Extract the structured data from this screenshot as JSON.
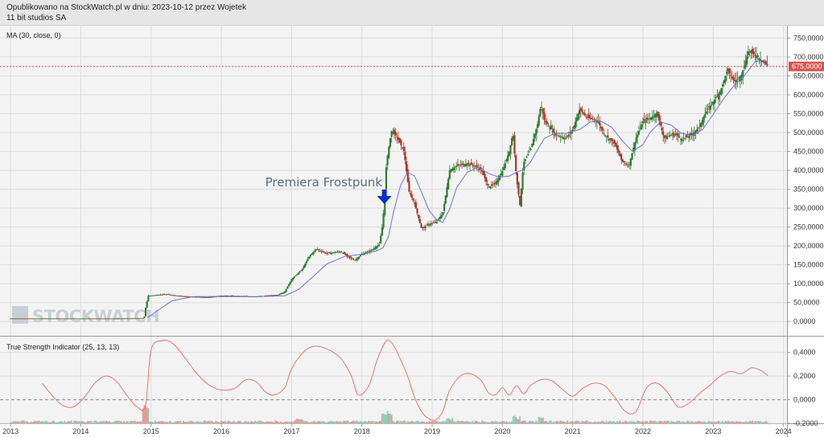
{
  "header": {
    "line1": "Opublikowano na StockWatch.pl w dniu: 2023-10-12 przez Wojetek",
    "line2": "11 bit studios SA"
  },
  "watermark": "STOCKWATCH",
  "chart_data": [
    {
      "type": "candlestick",
      "title": "MA (30, close, 0)",
      "ylim": [
        -25000,
        770000
      ],
      "ytick_labels": [
        "750,0000",
        "700,0000",
        "650,0000",
        "600,0000",
        "550,0000",
        "500,0000",
        "450,0000",
        "400,0000",
        "350,0000",
        "300,0000",
        "250,0000",
        "200,0000",
        "150,0000",
        "100,0000",
        "50,0000",
        "0,0000"
      ],
      "yticks": [
        750000,
        700000,
        650000,
        600000,
        550000,
        500000,
        450000,
        400000,
        350000,
        300000,
        250000,
        200000,
        150000,
        100000,
        50000,
        0
      ],
      "last_price_label": "675,0000",
      "last_price": 675000,
      "annotation": "Premiera Frostpunk",
      "annotation_x": 2018.32,
      "price_points": [
        [
          2013.0,
          8000
        ],
        [
          2013.5,
          8000
        ],
        [
          2014.0,
          8000
        ],
        [
          2014.5,
          8000
        ],
        [
          2014.9,
          8500
        ],
        [
          2014.93,
          45000
        ],
        [
          2014.96,
          68000
        ],
        [
          2015.2,
          72000
        ],
        [
          2015.5,
          66000
        ],
        [
          2015.8,
          64000
        ],
        [
          2016.0,
          68000
        ],
        [
          2016.2,
          67000
        ],
        [
          2016.5,
          66000
        ],
        [
          2016.8,
          70000
        ],
        [
          2016.9,
          78000
        ],
        [
          2017.0,
          112000
        ],
        [
          2017.15,
          138000
        ],
        [
          2017.25,
          172000
        ],
        [
          2017.35,
          192000
        ],
        [
          2017.5,
          180000
        ],
        [
          2017.7,
          185000
        ],
        [
          2017.8,
          172000
        ],
        [
          2017.9,
          162000
        ],
        [
          2018.0,
          178000
        ],
        [
          2018.15,
          190000
        ],
        [
          2018.25,
          205000
        ],
        [
          2018.3,
          262000
        ],
        [
          2018.35,
          420000
        ],
        [
          2018.42,
          505000
        ],
        [
          2018.5,
          488000
        ],
        [
          2018.6,
          450000
        ],
        [
          2018.67,
          345000
        ],
        [
          2018.75,
          312000
        ],
        [
          2018.85,
          245000
        ],
        [
          2018.95,
          258000
        ],
        [
          2019.05,
          262000
        ],
        [
          2019.15,
          285000
        ],
        [
          2019.25,
          400000
        ],
        [
          2019.35,
          412000
        ],
        [
          2019.5,
          418000
        ],
        [
          2019.6,
          412000
        ],
        [
          2019.7,
          402000
        ],
        [
          2019.8,
          355000
        ],
        [
          2019.9,
          365000
        ],
        [
          2020.0,
          398000
        ],
        [
          2020.1,
          452000
        ],
        [
          2020.15,
          500000
        ],
        [
          2020.2,
          380000
        ],
        [
          2020.25,
          308000
        ],
        [
          2020.3,
          420000
        ],
        [
          2020.4,
          455000
        ],
        [
          2020.5,
          522000
        ],
        [
          2020.55,
          575000
        ],
        [
          2020.6,
          530000
        ],
        [
          2020.75,
          495000
        ],
        [
          2020.9,
          485000
        ],
        [
          2021.0,
          508000
        ],
        [
          2021.1,
          562000
        ],
        [
          2021.2,
          540000
        ],
        [
          2021.35,
          532000
        ],
        [
          2021.45,
          495000
        ],
        [
          2021.6,
          470000
        ],
        [
          2021.7,
          425000
        ],
        [
          2021.8,
          412000
        ],
        [
          2021.9,
          485000
        ],
        [
          2022.0,
          530000
        ],
        [
          2022.1,
          538000
        ],
        [
          2022.2,
          552000
        ],
        [
          2022.3,
          485000
        ],
        [
          2022.45,
          498000
        ],
        [
          2022.55,
          482000
        ],
        [
          2022.7,
          495000
        ],
        [
          2022.8,
          515000
        ],
        [
          2022.9,
          555000
        ],
        [
          2023.0,
          582000
        ],
        [
          2023.1,
          608000
        ],
        [
          2023.2,
          665000
        ],
        [
          2023.3,
          635000
        ],
        [
          2023.4,
          650000
        ],
        [
          2023.5,
          715000
        ],
        [
          2023.6,
          705000
        ],
        [
          2023.7,
          690000
        ],
        [
          2023.78,
          675000
        ]
      ],
      "ma_points": [
        [
          2014.95,
          10000
        ],
        [
          2015.1,
          30000
        ],
        [
          2015.3,
          55000
        ],
        [
          2015.6,
          66000
        ],
        [
          2016.0,
          66000
        ],
        [
          2016.5,
          66000
        ],
        [
          2016.9,
          68000
        ],
        [
          2017.1,
          85000
        ],
        [
          2017.3,
          118000
        ],
        [
          2017.5,
          152000
        ],
        [
          2017.75,
          172000
        ],
        [
          2018.0,
          178000
        ],
        [
          2018.2,
          186000
        ],
        [
          2018.3,
          195000
        ],
        [
          2018.38,
          225000
        ],
        [
          2018.45,
          290000
        ],
        [
          2018.55,
          360000
        ],
        [
          2018.65,
          395000
        ],
        [
          2018.75,
          385000
        ],
        [
          2018.85,
          342000
        ],
        [
          2018.95,
          296000
        ],
        [
          2019.05,
          272000
        ],
        [
          2019.15,
          262000
        ],
        [
          2019.25,
          298000
        ],
        [
          2019.35,
          355000
        ],
        [
          2019.5,
          395000
        ],
        [
          2019.65,
          408000
        ],
        [
          2019.8,
          392000
        ],
        [
          2019.95,
          382000
        ],
        [
          2020.1,
          385000
        ],
        [
          2020.2,
          395000
        ],
        [
          2020.3,
          402000
        ],
        [
          2020.4,
          422000
        ],
        [
          2020.5,
          455000
        ],
        [
          2020.6,
          485000
        ],
        [
          2020.75,
          498000
        ],
        [
          2020.9,
          498000
        ],
        [
          2021.1,
          508000
        ],
        [
          2021.25,
          528000
        ],
        [
          2021.4,
          530000
        ],
        [
          2021.55,
          515000
        ],
        [
          2021.7,
          480000
        ],
        [
          2021.85,
          450000
        ],
        [
          2022.0,
          468000
        ],
        [
          2022.1,
          500000
        ],
        [
          2022.25,
          528000
        ],
        [
          2022.4,
          520000
        ],
        [
          2022.55,
          498000
        ],
        [
          2022.7,
          492000
        ],
        [
          2022.85,
          508000
        ],
        [
          2023.0,
          548000
        ],
        [
          2023.15,
          590000
        ],
        [
          2023.3,
          625000
        ],
        [
          2023.45,
          652000
        ],
        [
          2023.6,
          688000
        ],
        [
          2023.75,
          692000
        ]
      ]
    },
    {
      "type": "line",
      "title": "True Strength Indicator (25, 13, 13)",
      "ylim": [
        -0.2,
        0.5
      ],
      "ytick_labels": [
        "0,4000",
        "0,2000",
        "0,0000",
        "-0,2000"
      ],
      "yticks": [
        0.4,
        0.2,
        0.0,
        -0.2
      ],
      "points": [
        [
          2013.45,
          0.14
        ],
        [
          2013.6,
          0.03
        ],
        [
          2013.75,
          -0.05
        ],
        [
          2013.9,
          -0.06
        ],
        [
          2014.05,
          0.02
        ],
        [
          2014.2,
          0.14
        ],
        [
          2014.35,
          0.2
        ],
        [
          2014.5,
          0.16
        ],
        [
          2014.65,
          0.04
        ],
        [
          2014.8,
          -0.06
        ],
        [
          2014.92,
          -0.05
        ],
        [
          2015.0,
          0.42
        ],
        [
          2015.15,
          0.5
        ],
        [
          2015.3,
          0.48
        ],
        [
          2015.45,
          0.38
        ],
        [
          2015.6,
          0.26
        ],
        [
          2015.75,
          0.16
        ],
        [
          2015.9,
          0.1
        ],
        [
          2016.05,
          0.08
        ],
        [
          2016.2,
          0.1
        ],
        [
          2016.35,
          0.17
        ],
        [
          2016.5,
          0.15
        ],
        [
          2016.62,
          0.07
        ],
        [
          2016.75,
          0.04
        ],
        [
          2016.9,
          0.1
        ],
        [
          2017.0,
          0.26
        ],
        [
          2017.15,
          0.39
        ],
        [
          2017.3,
          0.45
        ],
        [
          2017.5,
          0.43
        ],
        [
          2017.7,
          0.35
        ],
        [
          2017.85,
          0.2
        ],
        [
          2017.95,
          0.04
        ],
        [
          2018.1,
          0.12
        ],
        [
          2018.22,
          0.34
        ],
        [
          2018.35,
          0.5
        ],
        [
          2018.45,
          0.46
        ],
        [
          2018.55,
          0.34
        ],
        [
          2018.65,
          0.2
        ],
        [
          2018.75,
          0.02
        ],
        [
          2018.85,
          -0.1
        ],
        [
          2018.95,
          -0.16
        ],
        [
          2019.05,
          -0.17
        ],
        [
          2019.15,
          -0.1
        ],
        [
          2019.25,
          0.08
        ],
        [
          2019.4,
          0.2
        ],
        [
          2019.55,
          0.22
        ],
        [
          2019.7,
          0.16
        ],
        [
          2019.8,
          0.06
        ],
        [
          2019.9,
          0.04
        ],
        [
          2020.0,
          0.1
        ],
        [
          2020.1,
          0.04
        ],
        [
          2020.2,
          0.12
        ],
        [
          2020.3,
          0.05
        ],
        [
          2020.4,
          0.12
        ],
        [
          2020.55,
          0.17
        ],
        [
          2020.7,
          0.16
        ],
        [
          2020.85,
          0.09
        ],
        [
          2021.0,
          0.03
        ],
        [
          2021.15,
          0.1
        ],
        [
          2021.3,
          0.14
        ],
        [
          2021.45,
          0.12
        ],
        [
          2021.6,
          0.02
        ],
        [
          2021.75,
          -0.1
        ],
        [
          2021.9,
          -0.1
        ],
        [
          2022.05,
          0.1
        ],
        [
          2022.2,
          0.14
        ],
        [
          2022.35,
          0.06
        ],
        [
          2022.5,
          -0.06
        ],
        [
          2022.65,
          -0.03
        ],
        [
          2022.8,
          0.05
        ],
        [
          2022.95,
          0.12
        ],
        [
          2023.1,
          0.2
        ],
        [
          2023.25,
          0.24
        ],
        [
          2023.4,
          0.22
        ],
        [
          2023.55,
          0.27
        ],
        [
          2023.7,
          0.24
        ],
        [
          2023.78,
          0.2
        ]
      ]
    }
  ],
  "x_axis": {
    "tick_labels": [
      "2013",
      "2014",
      "2015",
      "2016",
      "2017",
      "2018",
      "2019",
      "2020",
      "2021",
      "2022",
      "2023",
      "2024"
    ],
    "ticks": [
      2013,
      2014,
      2015,
      2016,
      2017,
      2018,
      2019,
      2020,
      2021,
      2022,
      2023,
      2024
    ],
    "xlim": [
      2012.85,
      2024.05
    ]
  },
  "colors": {
    "up_candle": "#2e7d32",
    "down_candle": "#a33a2a",
    "ma_line": "#6b74d8",
    "tsi_line": "#e4776d",
    "last_price_line": "#d9534f",
    "arrow": "#0a2fc9"
  }
}
